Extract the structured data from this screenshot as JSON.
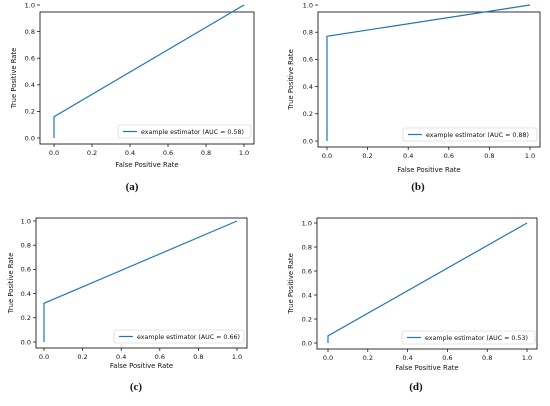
{
  "colors": {
    "series": "#1f77b4",
    "axis": "#000000"
  },
  "chart_data": [
    {
      "type": "line",
      "panel_label": "(a)",
      "xlabel": "False Positive Rate",
      "ylabel": "True Positive Rate",
      "xlim": [
        0,
        1
      ],
      "ylim": [
        0,
        1
      ],
      "xticks": [
        "0.0",
        "0.2",
        "0.4",
        "0.6",
        "0.8",
        "1.0"
      ],
      "yticks": [
        "0.0",
        "0.2",
        "0.4",
        "0.6",
        "0.8",
        "1.0"
      ],
      "legend_position": "bottom-right",
      "grid": false,
      "series": [
        {
          "name": "example estimator (AUC = 0.58)",
          "x": [
            0,
            0,
            1
          ],
          "y": [
            0,
            0.16,
            1
          ]
        }
      ]
    },
    {
      "type": "line",
      "panel_label": "(b)",
      "xlabel": "False Positive Rate",
      "ylabel": "True Positive Rate",
      "xlim": [
        0,
        1
      ],
      "ylim": [
        0,
        1
      ],
      "xticks": [
        "0.0",
        "0.2",
        "0.4",
        "0.6",
        "0.8",
        "1.0"
      ],
      "yticks": [
        "0.0",
        "0.2",
        "0.4",
        "0.6",
        "0.8",
        "1.0"
      ],
      "legend_position": "bottom-right",
      "grid": false,
      "series": [
        {
          "name": "example estimator (AUC = 0.88)",
          "x": [
            0,
            0,
            1
          ],
          "y": [
            0,
            0.77,
            1
          ]
        }
      ]
    },
    {
      "type": "line",
      "panel_label": "(c)",
      "xlabel": "False Positive Rate",
      "ylabel": "True Positive Rate",
      "xlim": [
        0,
        1
      ],
      "ylim": [
        0,
        1
      ],
      "xticks": [
        "0.0",
        "0.2",
        "0.4",
        "0.6",
        "0.8",
        "1.0"
      ],
      "yticks": [
        "0.0",
        "0.2",
        "0.4",
        "0.6",
        "0.8",
        "1.0"
      ],
      "legend_position": "bottom-right",
      "grid": false,
      "series": [
        {
          "name": "example estimator (AUC = 0.66)",
          "x": [
            0,
            0,
            1
          ],
          "y": [
            0,
            0.32,
            1
          ]
        }
      ]
    },
    {
      "type": "line",
      "panel_label": "(d)",
      "xlabel": "False Positive Rate",
      "ylabel": "True Positive Rate",
      "xlim": [
        0,
        1
      ],
      "ylim": [
        0,
        1
      ],
      "xticks": [
        "0.0",
        "0.2",
        "0.4",
        "0.6",
        "0.8",
        "1.0"
      ],
      "yticks": [
        "0.0",
        "0.2",
        "0.4",
        "0.6",
        "0.8",
        "1.0"
      ],
      "legend_position": "bottom-right",
      "grid": false,
      "series": [
        {
          "name": "example estimator (AUC = 0.53)",
          "x": [
            0,
            0,
            1
          ],
          "y": [
            0,
            0.06,
            1
          ]
        }
      ]
    }
  ]
}
